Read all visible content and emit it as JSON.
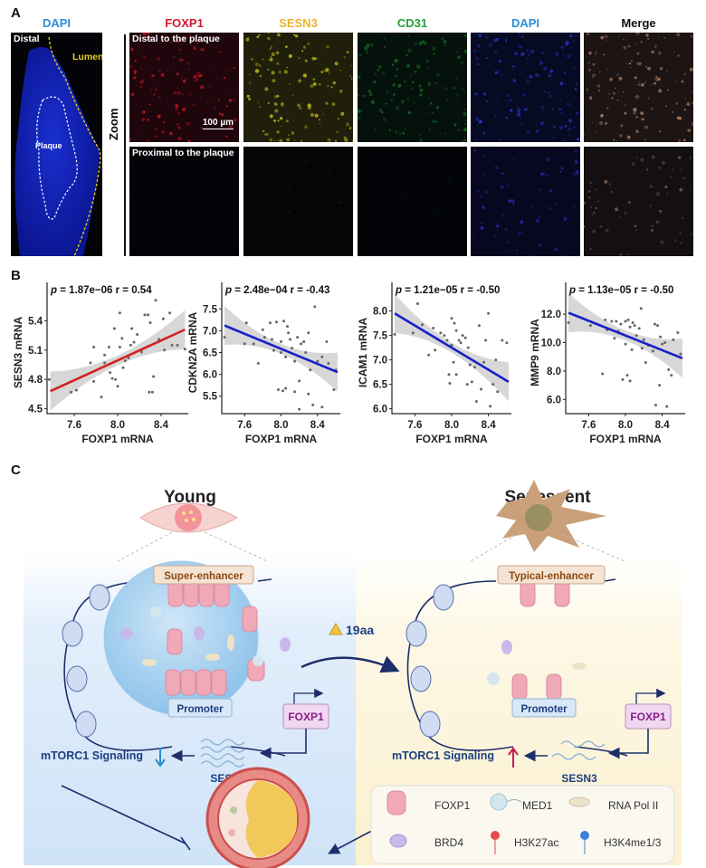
{
  "panel_a": {
    "label": "A",
    "overview": {
      "channel": "DAPI",
      "distal": "Distal",
      "lumen": "Lumen",
      "plaque": "Plaque"
    },
    "zoom_label": "Zoom",
    "channels": [
      {
        "name": "FOXP1",
        "color": "#d0182e"
      },
      {
        "name": "SESN3",
        "color": "#e8b42a"
      },
      {
        "name": "CD31",
        "color": "#2a9e3a"
      },
      {
        "name": "DAPI",
        "color": "#2a8fd8"
      },
      {
        "name": "Merge",
        "color": "#111111"
      }
    ],
    "rows": [
      "Distal to the plaque",
      "Proximal to the plaque"
    ],
    "scale_bar": "100 µm"
  },
  "panel_b": {
    "label": "B"
  },
  "chart_data": [
    {
      "type": "scatter",
      "xlabel": "FOXP1 mRNA",
      "ylabel": "SESN3 mRNA",
      "annotation_p": "1.87e−06",
      "annotation_r": "r = 0.54",
      "xlim": [
        7.35,
        8.65
      ],
      "ylim": [
        4.45,
        5.7
      ],
      "xticks": [
        7.6,
        8.0,
        8.4
      ],
      "yticks": [
        "4.5",
        "4.8",
        "5.1",
        "5.4"
      ],
      "fit": {
        "x": [
          7.38,
          8.62
        ],
        "y": [
          4.68,
          5.31
        ],
        "color": "#d42020"
      },
      "points": [
        [
          7.37,
          4.8
        ],
        [
          7.57,
          4.67
        ],
        [
          7.62,
          4.69
        ],
        [
          7.75,
          4.97
        ],
        [
          7.78,
          5.13
        ],
        [
          7.78,
          4.78
        ],
        [
          7.85,
          4.62
        ],
        [
          7.88,
          5.05
        ],
        [
          7.88,
          4.97
        ],
        [
          7.92,
          5.13
        ],
        [
          7.93,
          4.87
        ],
        [
          7.95,
          4.81
        ],
        [
          7.97,
          5.32
        ],
        [
          7.98,
          4.8
        ],
        [
          8.0,
          4.73
        ],
        [
          8.02,
          5.13
        ],
        [
          8.02,
          5.48
        ],
        [
          8.04,
          5.22
        ],
        [
          8.05,
          4.92
        ],
        [
          8.07,
          4.99
        ],
        [
          8.1,
          5.02
        ],
        [
          8.12,
          5.15
        ],
        [
          8.13,
          5.32
        ],
        [
          8.15,
          5.18
        ],
        [
          8.18,
          5.26
        ],
        [
          8.22,
          5.08
        ],
        [
          8.25,
          5.46
        ],
        [
          8.28,
          5.46
        ],
        [
          8.29,
          4.67
        ],
        [
          8.3,
          5.38
        ],
        [
          8.32,
          4.67
        ],
        [
          8.33,
          4.83
        ],
        [
          8.35,
          5.61
        ],
        [
          8.38,
          5.21
        ],
        [
          8.42,
          5.42
        ],
        [
          8.43,
          5.1
        ],
        [
          8.48,
          5.48
        ],
        [
          8.5,
          5.15
        ],
        [
          8.55,
          5.15
        ],
        [
          8.62,
          5.11
        ]
      ]
    },
    {
      "type": "scatter",
      "xlabel": "FOXP1 mRNA",
      "ylabel": "CDKN2A mRNA",
      "annotation_p": "2.48e−04",
      "annotation_r": "r = -0.43",
      "xlim": [
        7.35,
        8.65
      ],
      "ylim": [
        5.1,
        7.9
      ],
      "xticks": [
        7.6,
        8.0,
        8.4
      ],
      "yticks": [
        "5.5",
        "6.0",
        "6.5",
        "7.0",
        "7.5"
      ],
      "fit": {
        "x": [
          7.38,
          8.62
        ],
        "y": [
          7.12,
          6.05
        ],
        "color": "#1a1fc8"
      },
      "points": [
        [
          7.38,
          6.85
        ],
        [
          7.62,
          7.18
        ],
        [
          7.6,
          6.7
        ],
        [
          7.7,
          6.7
        ],
        [
          7.75,
          6.25
        ],
        [
          7.8,
          7.02
        ],
        [
          7.82,
          6.85
        ],
        [
          7.88,
          7.18
        ],
        [
          7.9,
          6.8
        ],
        [
          7.92,
          6.55
        ],
        [
          7.95,
          7.2
        ],
        [
          7.97,
          5.65
        ],
        [
          8.0,
          6.75
        ],
        [
          8.0,
          6.5
        ],
        [
          8.02,
          5.62
        ],
        [
          8.03,
          7.22
        ],
        [
          8.05,
          5.68
        ],
        [
          8.05,
          6.4
        ],
        [
          8.07,
          7.1
        ],
        [
          8.08,
          6.95
        ],
        [
          8.1,
          6.8
        ],
        [
          8.12,
          6.6
        ],
        [
          8.15,
          6.3
        ],
        [
          8.15,
          5.6
        ],
        [
          8.18,
          6.85
        ],
        [
          8.2,
          5.85
        ],
        [
          8.2,
          5.2
        ],
        [
          8.22,
          6.7
        ],
        [
          8.25,
          6.75
        ],
        [
          8.27,
          6.5
        ],
        [
          8.3,
          6.95
        ],
        [
          8.3,
          5.55
        ],
        [
          8.32,
          6.1
        ],
        [
          8.35,
          5.3
        ],
        [
          8.37,
          7.55
        ],
        [
          8.4,
          6.3
        ],
        [
          8.45,
          5.25
        ],
        [
          8.45,
          6.4
        ],
        [
          8.5,
          6.75
        ],
        [
          8.52,
          6.25
        ],
        [
          8.58,
          5.65
        ],
        [
          8.6,
          6.1
        ]
      ]
    },
    {
      "type": "scatter",
      "xlabel": "FOXP1 mRNA",
      "ylabel": "ICAM1 mRNA",
      "annotation_p": "1.21e−05",
      "annotation_r": "r = -0.50",
      "xlim": [
        7.35,
        8.65
      ],
      "ylim": [
        5.9,
        8.4
      ],
      "xticks": [
        7.6,
        8.0,
        8.4
      ],
      "yticks": [
        "6.0",
        "6.5",
        "7.0",
        "7.5",
        "8.0"
      ],
      "fit": {
        "x": [
          7.38,
          8.62
        ],
        "y": [
          7.95,
          6.55
        ],
        "color": "#1a1fc8"
      },
      "points": [
        [
          7.38,
          7.52
        ],
        [
          7.63,
          8.15
        ],
        [
          7.58,
          7.55
        ],
        [
          7.68,
          7.72
        ],
        [
          7.75,
          7.1
        ],
        [
          7.8,
          7.65
        ],
        [
          7.82,
          7.2
        ],
        [
          7.88,
          7.55
        ],
        [
          7.92,
          7.5
        ],
        [
          7.95,
          7.4
        ],
        [
          7.97,
          6.7
        ],
        [
          7.98,
          6.52
        ],
        [
          8.0,
          7.85
        ],
        [
          8.0,
          7.3
        ],
        [
          8.02,
          6.95
        ],
        [
          8.03,
          7.75
        ],
        [
          8.05,
          6.7
        ],
        [
          8.05,
          7.6
        ],
        [
          8.08,
          7.4
        ],
        [
          8.1,
          7.35
        ],
        [
          8.12,
          7.5
        ],
        [
          8.15,
          7.45
        ],
        [
          8.17,
          6.5
        ],
        [
          8.18,
          7.25
        ],
        [
          8.2,
          6.9
        ],
        [
          8.22,
          6.55
        ],
        [
          8.25,
          6.85
        ],
        [
          8.27,
          6.15
        ],
        [
          8.3,
          7.7
        ],
        [
          8.32,
          6.4
        ],
        [
          8.35,
          6.95
        ],
        [
          8.37,
          7.4
        ],
        [
          8.4,
          7.95
        ],
        [
          8.42,
          6.05
        ],
        [
          8.45,
          6.5
        ],
        [
          8.48,
          7.0
        ],
        [
          8.5,
          6.35
        ],
        [
          8.55,
          7.4
        ],
        [
          8.6,
          7.35
        ]
      ]
    },
    {
      "type": "scatter",
      "xlabel": "FOXP1 mRNA",
      "ylabel": "MMP9 mRNA",
      "annotation_p": "1.13e−05",
      "annotation_r": "r = -0.50",
      "xlim": [
        7.35,
        8.65
      ],
      "ylim": [
        5.0,
        13.6
      ],
      "xticks": [
        7.6,
        8.0,
        8.4
      ],
      "yticks": [
        "6.0",
        "8.0",
        "10.0",
        "12.0"
      ],
      "fit": {
        "x": [
          7.38,
          8.62
        ],
        "y": [
          12.1,
          8.9
        ],
        "color": "#1a1fc8"
      },
      "points": [
        [
          7.38,
          11.4
        ],
        [
          7.62,
          11.2
        ],
        [
          7.75,
          7.8
        ],
        [
          7.78,
          11.6
        ],
        [
          7.8,
          10.9
        ],
        [
          7.85,
          11.5
        ],
        [
          7.88,
          10.3
        ],
        [
          7.9,
          11.5
        ],
        [
          7.92,
          10.8
        ],
        [
          7.95,
          11.3
        ],
        [
          7.97,
          7.4
        ],
        [
          8.0,
          11.5
        ],
        [
          8.0,
          9.9
        ],
        [
          8.02,
          7.7
        ],
        [
          8.03,
          11.6
        ],
        [
          8.05,
          7.3
        ],
        [
          8.05,
          11.1
        ],
        [
          8.07,
          9.5
        ],
        [
          8.08,
          11.4
        ],
        [
          8.1,
          11.2
        ],
        [
          8.12,
          10.5
        ],
        [
          8.15,
          11.0
        ],
        [
          8.17,
          12.4
        ],
        [
          8.18,
          9.6
        ],
        [
          8.2,
          10.2
        ],
        [
          8.22,
          8.6
        ],
        [
          8.25,
          9.8
        ],
        [
          8.3,
          9.4
        ],
        [
          8.32,
          11.3
        ],
        [
          8.33,
          5.6
        ],
        [
          8.35,
          11.2
        ],
        [
          8.37,
          7.0
        ],
        [
          8.38,
          10.4
        ],
        [
          8.4,
          9.9
        ],
        [
          8.43,
          10.0
        ],
        [
          8.45,
          5.5
        ],
        [
          8.47,
          8.1
        ],
        [
          8.5,
          7.7
        ],
        [
          8.52,
          10.2
        ],
        [
          8.57,
          10.7
        ],
        [
          8.6,
          9.2
        ]
      ]
    }
  ],
  "panel_c": {
    "label": "C",
    "young": {
      "title": "Young",
      "enhancer": "Super-enhancer",
      "promoter": "Promoter",
      "gene": "FOXP1",
      "signaling": "mTORC1 Signaling",
      "sesn3": "SESN3",
      "bg": "#dcecfb"
    },
    "senescent": {
      "title": "Senescent",
      "enhancer": "Typical-enhancer",
      "promoter": "Promoter",
      "gene": "FOXP1",
      "signaling": "mTORC1 Signaling",
      "sesn3": "SESN3",
      "bg": "#fdf6e0"
    },
    "treatment": "19aa",
    "legend": [
      {
        "label": "FOXP1",
        "icon": "foxp1-protein"
      },
      {
        "label": "MED1",
        "icon": "med1-protein"
      },
      {
        "label": "RNA Pol II",
        "icon": "rna-pol-ii"
      },
      {
        "label": "BRD4",
        "icon": "brd4-protein"
      },
      {
        "label": "H3K27ac",
        "icon": "h3k27ac-mark",
        "color": "#e84a4a"
      },
      {
        "label": "H3K4me1/3",
        "icon": "h3k4me-mark",
        "color": "#3d7fd8"
      }
    ]
  }
}
